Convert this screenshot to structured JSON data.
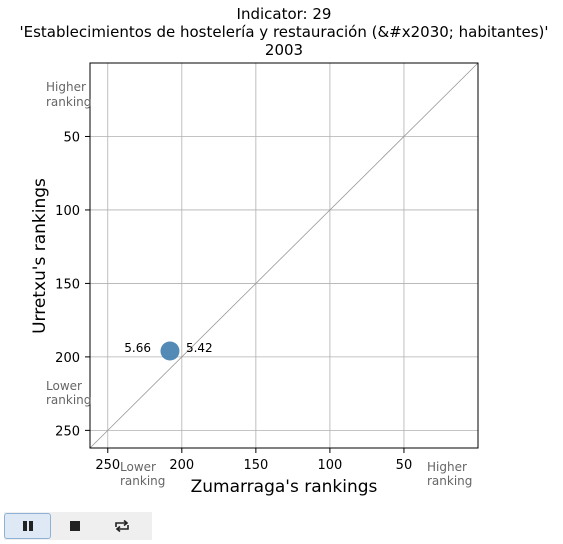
{
  "chart_data": {
    "type": "scatter",
    "title": [
      "Indicator: 29",
      "'Establecimientos de hostelería y restauración (&#x2030; habitantes)'",
      "2003"
    ],
    "xlabel": "Zumarraga's rankings",
    "ylabel": "Urretxu's rankings",
    "xlim": [
      262,
      0
    ],
    "ylim": [
      262,
      0
    ],
    "x_ticks": [
      250,
      200,
      150,
      100,
      50
    ],
    "y_ticks": [
      50,
      100,
      150,
      200,
      250
    ],
    "grid": true,
    "diagonal": true,
    "points": [
      {
        "x": 208,
        "y": 196,
        "label_left": "5.66",
        "label_right": "5.42"
      }
    ],
    "annotations": {
      "y_high": [
        "Higher",
        "ranking"
      ],
      "y_low": [
        "Lower",
        "ranking"
      ],
      "x_low": [
        "Lower",
        "ranking"
      ],
      "x_high": [
        "Higher",
        "ranking"
      ]
    },
    "colors": {
      "point": "#4a84b2",
      "grid": "#b0b0b0",
      "diagonal": "#999999"
    }
  },
  "toolbar": {
    "buttons": [
      {
        "name": "pause-button",
        "icon": "pause-icon",
        "active": true
      },
      {
        "name": "stop-button",
        "icon": "stop-icon",
        "active": false
      },
      {
        "name": "repeat-button",
        "icon": "repeat-icon",
        "active": false
      }
    ]
  }
}
